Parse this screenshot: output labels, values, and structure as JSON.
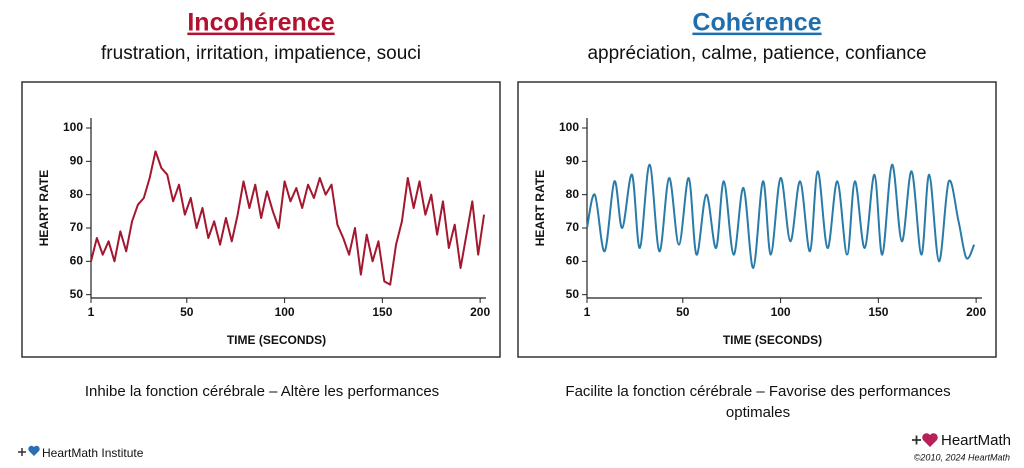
{
  "chart_data": [
    {
      "type": "line",
      "title": "Incohérence",
      "subtitle": "frustration, irritation, impatience, souci",
      "title_color": "#b3112e",
      "xlabel": "TIME (SECONDS)",
      "ylabel": "HEART RATE",
      "x": [
        1,
        4,
        7,
        10,
        13,
        16,
        19,
        22,
        25,
        28,
        31,
        34,
        37,
        40,
        43,
        46,
        49,
        52,
        55,
        58,
        61,
        64,
        67,
        70,
        73,
        76,
        79,
        82,
        85,
        88,
        91,
        94,
        97,
        100,
        103,
        106,
        109,
        112,
        115,
        118,
        121,
        124,
        127,
        130,
        133,
        136,
        139,
        142,
        145,
        148,
        151,
        154,
        157,
        160,
        163,
        166,
        169,
        172,
        175,
        178,
        181,
        184,
        187,
        190,
        193,
        196,
        199,
        202
      ],
      "series": [
        {
          "color": "#a3172f",
          "values": [
            60,
            67,
            62,
            66,
            60,
            69,
            63,
            72,
            77,
            79,
            85,
            93,
            88,
            86,
            78,
            83,
            74,
            79,
            70,
            76,
            67,
            72,
            65,
            73,
            66,
            74,
            84,
            76,
            83,
            73,
            81,
            75,
            70,
            84,
            78,
            82,
            76,
            83,
            79,
            85,
            80,
            83,
            71,
            67,
            62,
            70,
            56,
            68,
            60,
            66,
            54,
            53,
            65,
            72,
            85,
            76,
            84,
            74,
            80,
            68,
            78,
            64,
            71,
            58,
            68,
            78,
            62,
            74
          ]
        }
      ],
      "xlim": [
        1,
        203
      ],
      "ylim": [
        49,
        103
      ],
      "xticks": [
        1,
        50,
        100,
        150,
        200
      ],
      "yticks": [
        50,
        60,
        70,
        80,
        90,
        100
      ],
      "caption": [
        "Inhibe la fonction cérébrale – Altère les performances"
      ]
    },
    {
      "type": "line",
      "title": "Cohérence",
      "subtitle": "appréciation, calme, patience, confiance",
      "title_color": "#1f6fae",
      "smooth": true,
      "xlabel": "TIME (SECONDS)",
      "ylabel": "HEART RATE",
      "x": [
        1,
        5,
        10,
        15,
        19,
        24,
        28,
        33,
        38,
        43,
        48,
        53,
        57,
        62,
        67,
        71,
        76,
        81,
        86,
        91,
        95,
        100,
        105,
        110,
        115,
        119,
        124,
        129,
        134,
        138,
        143,
        148,
        152,
        157,
        162,
        167,
        172,
        176,
        181,
        186,
        191,
        195,
        199
      ],
      "series": [
        {
          "color": "#2b7ba9",
          "values": [
            70,
            80,
            63,
            84,
            70,
            86,
            64,
            89,
            63,
            85,
            65,
            85,
            62,
            80,
            64,
            84,
            62,
            82,
            58,
            84,
            62,
            85,
            66,
            84,
            63,
            87,
            64,
            84,
            62,
            84,
            64,
            86,
            62,
            89,
            66,
            87,
            62,
            86,
            60,
            84,
            72,
            61,
            65
          ]
        }
      ],
      "xlim": [
        1,
        203
      ],
      "ylim": [
        49,
        103
      ],
      "xticks": [
        1,
        50,
        100,
        150,
        200
      ],
      "yticks": [
        50,
        60,
        70,
        80,
        90,
        100
      ],
      "caption": [
        "Facilite la fonction cérébrale – Favorise des performances",
        "optimales"
      ]
    }
  ],
  "footer": {
    "left": "HeartMath Institute",
    "right": "HeartMath",
    "copyright": "©2010, 2024 HeartMath"
  }
}
